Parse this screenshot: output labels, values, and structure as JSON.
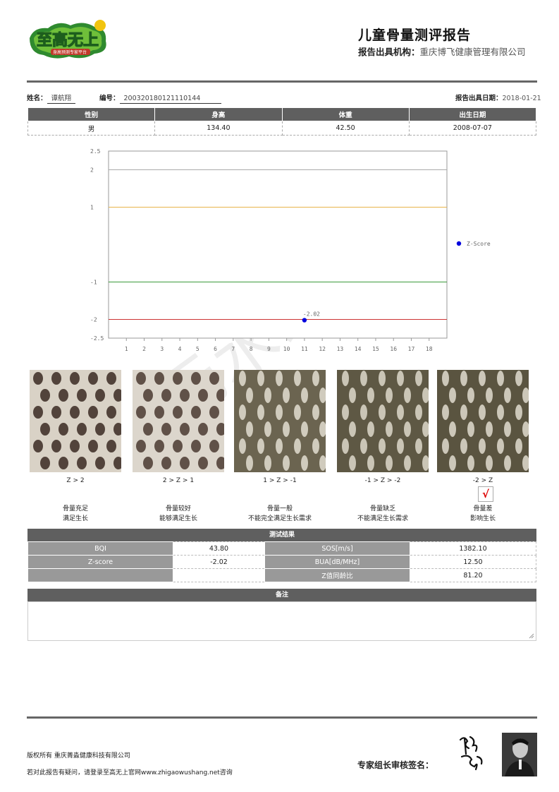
{
  "logo": {
    "name": "至高无上",
    "tagline": "身高预测专家平台"
  },
  "header": {
    "title": "儿童骨量测评报告",
    "issuer_label": "报告出具机构：",
    "issuer_value": "重庆博飞健康管理有限公司"
  },
  "patient": {
    "name_label": "姓名：",
    "name": "谭航翔",
    "id_label": "编号：",
    "id": "200320180121110144",
    "date_label": "报告出具日期：",
    "date": "2018-01-21"
  },
  "basic_table": {
    "headers": [
      "性别",
      "身高",
      "体重",
      "出生日期"
    ],
    "values": [
      "男",
      "134.40",
      "42.50",
      "2008-07-07"
    ]
  },
  "chart_data": {
    "type": "scatter",
    "x_ticks": [
      "1",
      "2",
      "3",
      "4",
      "5",
      "6",
      "7",
      "8",
      "9",
      "10",
      "11",
      "12",
      "13",
      "14",
      "15",
      "16",
      "17",
      "18"
    ],
    "y_ticks": [
      "2.5",
      "2",
      "1",
      "-1",
      "-2",
      "-2.5"
    ],
    "xlim": [
      0,
      19
    ],
    "ylim": [
      -2.5,
      2.5
    ],
    "reference_lines": [
      {
        "y": 2,
        "color": "#aaaaaa"
      },
      {
        "y": 1,
        "color": "#e8b44a"
      },
      {
        "y": -1,
        "color": "#3a9a3a"
      },
      {
        "y": -2,
        "color": "#cc3333"
      }
    ],
    "series": [
      {
        "name": "Z-Score",
        "color": "#0000dd",
        "points": [
          {
            "x": 11,
            "y": -2.02,
            "label": "-2.02"
          }
        ]
      }
    ],
    "legend_position": "right",
    "grid": false
  },
  "bone_levels": [
    {
      "range": "Z > 2",
      "desc1": "骨量充足",
      "desc2": "满足生长",
      "checked": false
    },
    {
      "range": "2 > Z > 1",
      "desc1": "骨量较好",
      "desc2": "能够满足生长",
      "checked": false
    },
    {
      "range": "1 > Z > -1",
      "desc1": "骨量一般",
      "desc2": "不能完全满足生长需求",
      "checked": false
    },
    {
      "range": "-1 > Z > -2",
      "desc1": "骨量缺乏",
      "desc2": "不能满足生长需求",
      "checked": false
    },
    {
      "range": "-2 > Z",
      "desc1": "骨量差",
      "desc2": "影响生长",
      "checked": true,
      "mark": "√"
    }
  ],
  "results": {
    "title": "测试结果",
    "rows": [
      [
        "BQI",
        "43.80",
        "SOS[m/s]",
        "1382.10"
      ],
      [
        "Z-score",
        "-2.02",
        "BUA[dB/MHz]",
        "12.50"
      ],
      [
        "",
        "",
        "Z值同龄比",
        "81.20"
      ]
    ]
  },
  "notes": {
    "title": "备注"
  },
  "watermark": "无水印",
  "footer": {
    "copyright": "版权所有 重庆菁淼健康科技有限公司",
    "contact": "若对此报告有疑问，请登录至高无上官网www.zhigaowushang.net咨询",
    "signature_label": "专家组长审核签名："
  },
  "colors": {
    "header_gray": "#5f5f5f",
    "cell_gray": "#999999",
    "check_red": "#dd0000"
  }
}
